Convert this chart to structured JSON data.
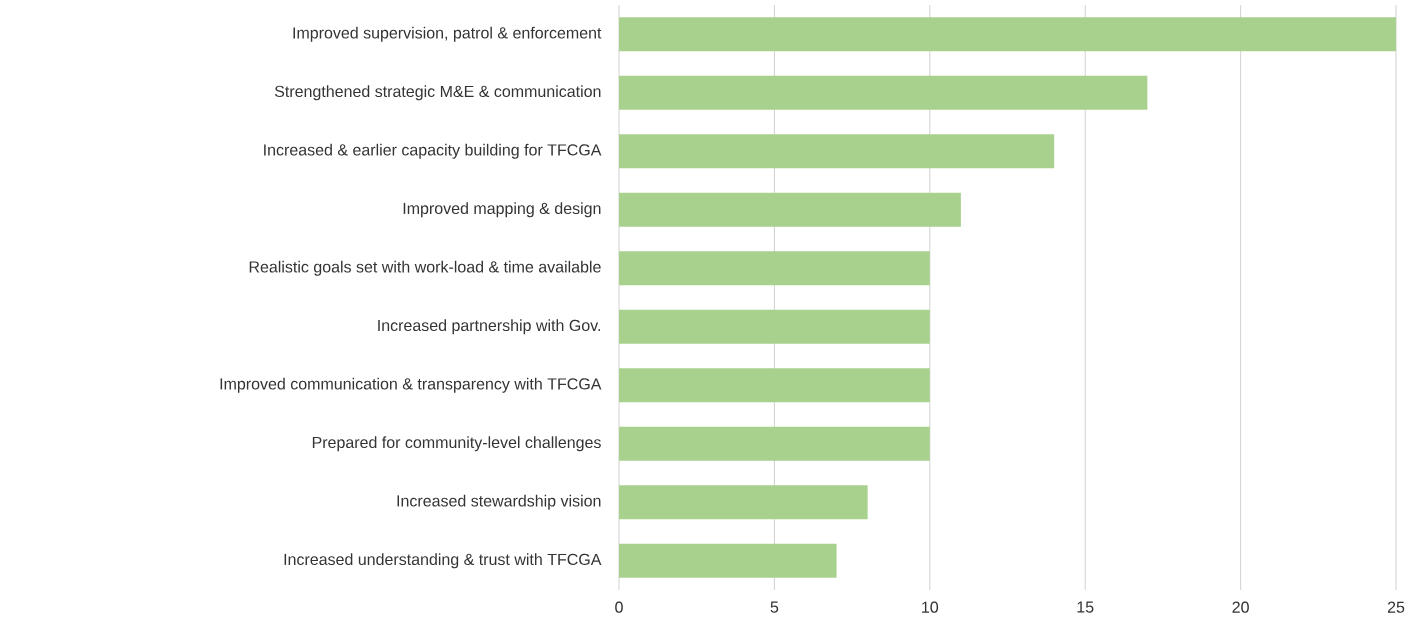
{
  "chart_data": {
    "type": "bar",
    "orientation": "horizontal",
    "categories": [
      "Improved supervision, patrol & enforcement",
      "Strengthened strategic M&E & communication",
      "Increased & earlier capacity building for TFCGA",
      "Improved mapping & design",
      "Realistic goals set with work-load & time available",
      "Increased partnership with Gov.",
      "Improved communication & transparency with TFCGA",
      "Prepared for community-level challenges",
      "Increased stewardship vision",
      "Increased understanding & trust with TFCGA"
    ],
    "values": [
      25,
      17,
      14,
      11,
      10,
      10,
      10,
      10,
      8,
      7
    ],
    "color": "#a9d18e",
    "xlim": [
      0,
      25
    ],
    "xticks": [
      0,
      5,
      10,
      15,
      20,
      25
    ],
    "grid": "x"
  }
}
